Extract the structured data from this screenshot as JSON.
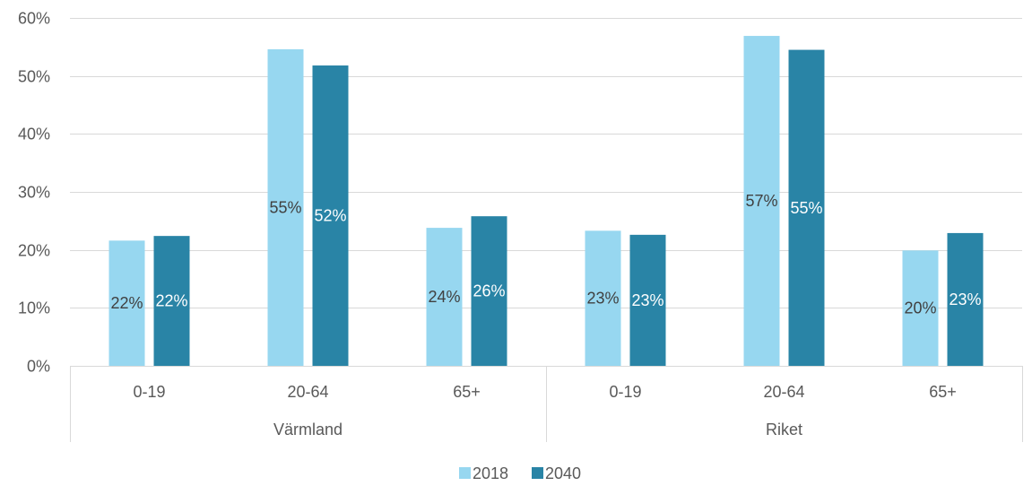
{
  "chart_data": {
    "type": "bar",
    "groups": [
      {
        "label": "Värmland",
        "categories": [
          "0-19",
          "20-64",
          "65+"
        ]
      },
      {
        "label": "Riket",
        "categories": [
          "0-19",
          "20-64",
          "65+"
        ]
      }
    ],
    "series": [
      {
        "name": "2018",
        "color": "#97D7F0",
        "label_color": "#404040",
        "values": [
          21.6,
          54.6,
          23.8,
          23.3,
          56.9,
          19.9
        ],
        "labels": [
          "22%",
          "55%",
          "24%",
          "23%",
          "57%",
          "20%"
        ]
      },
      {
        "name": "2040",
        "color": "#2984A6",
        "label_color": "#ffffff",
        "values": [
          22.4,
          51.8,
          25.8,
          22.6,
          54.5,
          22.9
        ],
        "labels": [
          "22%",
          "52%",
          "26%",
          "23%",
          "55%",
          "23%"
        ]
      }
    ],
    "y_ticks": [
      "0%",
      "10%",
      "20%",
      "30%",
      "40%",
      "50%",
      "60%"
    ],
    "ylim": [
      0,
      60
    ],
    "grid": true,
    "legend_position": "bottom",
    "title": "",
    "xlabel": "",
    "ylabel": ""
  }
}
